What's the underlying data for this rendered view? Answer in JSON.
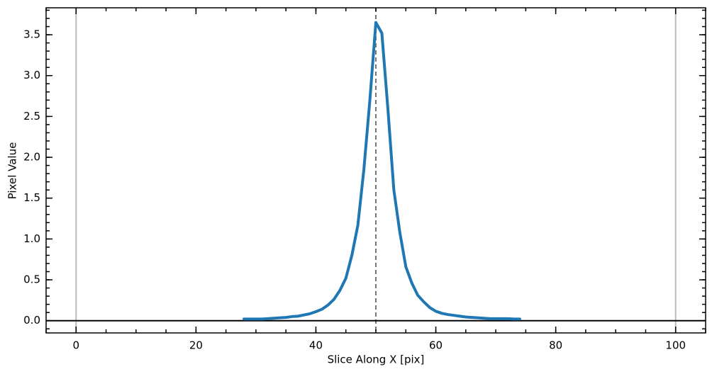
{
  "chart_data": {
    "type": "line",
    "xlabel": "Slice Along X [pix]",
    "ylabel": "Pixel Value",
    "x": [
      28,
      29,
      30,
      31,
      32,
      33,
      34,
      35,
      36,
      37,
      38,
      39,
      40,
      41,
      42,
      43,
      44,
      45,
      46,
      47,
      48,
      49,
      50,
      51,
      52,
      53,
      54,
      55,
      56,
      57,
      58,
      59,
      60,
      61,
      62,
      63,
      64,
      65,
      66,
      67,
      68,
      69,
      70,
      71,
      72,
      73,
      74
    ],
    "series": [
      {
        "color": "#1f77b4",
        "values": [
          0.02,
          0.02,
          0.02,
          0.02,
          0.025,
          0.03,
          0.035,
          0.04,
          0.05,
          0.055,
          0.07,
          0.085,
          0.11,
          0.14,
          0.19,
          0.26,
          0.37,
          0.52,
          0.8,
          1.17,
          1.85,
          2.7,
          3.65,
          3.52,
          2.6,
          1.6,
          1.08,
          0.66,
          0.46,
          0.31,
          0.23,
          0.16,
          0.115,
          0.09,
          0.075,
          0.065,
          0.055,
          0.045,
          0.04,
          0.035,
          0.03,
          0.025,
          0.025,
          0.025,
          0.025,
          0.02,
          0.02
        ]
      }
    ],
    "xlim": [
      -5,
      105
    ],
    "xticks": [
      0,
      20,
      40,
      60,
      80,
      100
    ],
    "ylim": [
      -0.15,
      3.83
    ],
    "yticks": [
      {
        "value": 0,
        "label": "0.0"
      },
      {
        "value": 0.5,
        "label": "0.5"
      },
      {
        "value": 1,
        "label": "1.0"
      },
      {
        "value": 1.5,
        "label": "1.5"
      },
      {
        "value": 2,
        "label": "2.0"
      },
      {
        "value": 2.5,
        "label": "2.5"
      },
      {
        "value": 3,
        "label": "3.0"
      },
      {
        "value": 3.5,
        "label": "3.5"
      }
    ],
    "xminor_step": 5,
    "yminor_step": 0.1,
    "vlines": [
      0,
      100
    ],
    "vline_color": "#bbbbbb",
    "center_line": 50,
    "center_color": "#777777",
    "hline": 0,
    "hline_color": "#000000"
  }
}
